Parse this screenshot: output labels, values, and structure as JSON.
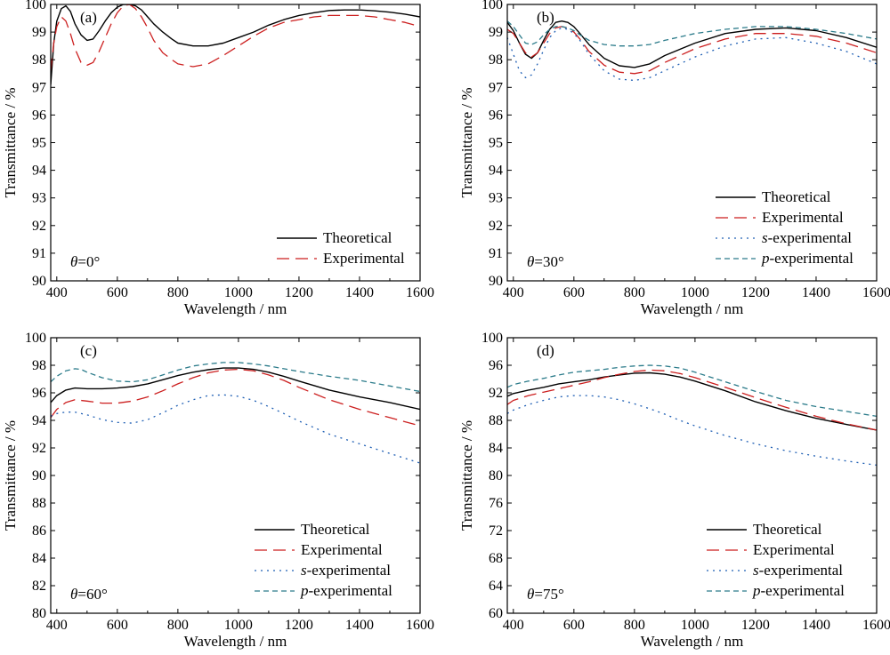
{
  "chart_data": [
    {
      "type": "line",
      "panel_label": "(a)",
      "angle_label": "=0°",
      "angle_symbol": "θ",
      "xlabel": "Wavelength / nm",
      "ylabel": "Transmittance / %",
      "xlim": [
        380,
        1600
      ],
      "ylim": [
        90,
        100
      ],
      "xticks": [
        400,
        600,
        800,
        1000,
        1200,
        1400,
        1600
      ],
      "yticks": [
        90,
        91,
        92,
        93,
        94,
        95,
        96,
        97,
        98,
        99,
        100
      ],
      "legend_position": "bottom-right",
      "series": [
        {
          "name": "Theoretical",
          "color": "#000000",
          "dash": "solid",
          "x": [
            380,
            390,
            400,
            415,
            430,
            445,
            460,
            480,
            500,
            520,
            540,
            560,
            580,
            600,
            620,
            640,
            660,
            680,
            700,
            720,
            750,
            780,
            800,
            850,
            900,
            950,
            1000,
            1050,
            1100,
            1150,
            1200,
            1250,
            1300,
            1350,
            1400,
            1450,
            1500,
            1550,
            1600
          ],
          "y": [
            97.1,
            98.6,
            99.4,
            99.85,
            99.95,
            99.75,
            99.3,
            98.9,
            98.7,
            98.75,
            99.05,
            99.4,
            99.7,
            99.9,
            100.0,
            100.0,
            99.95,
            99.8,
            99.55,
            99.3,
            99.0,
            98.75,
            98.6,
            98.5,
            98.5,
            98.6,
            98.8,
            99.0,
            99.25,
            99.45,
            99.6,
            99.7,
            99.78,
            99.8,
            99.8,
            99.77,
            99.72,
            99.65,
            99.55
          ]
        },
        {
          "name": "Experimental",
          "color": "#cc1f1f",
          "dash": "long",
          "x": [
            380,
            390,
            400,
            415,
            430,
            445,
            460,
            480,
            500,
            520,
            540,
            560,
            580,
            600,
            620,
            640,
            660,
            680,
            700,
            720,
            750,
            780,
            800,
            850,
            900,
            950,
            1000,
            1050,
            1100,
            1150,
            1200,
            1250,
            1300,
            1350,
            1400,
            1450,
            1500,
            1550,
            1600
          ],
          "y": [
            97.6,
            98.6,
            99.2,
            99.55,
            99.4,
            98.95,
            98.4,
            97.9,
            97.8,
            97.9,
            98.3,
            98.8,
            99.3,
            99.7,
            99.95,
            100.0,
            99.85,
            99.55,
            99.15,
            98.7,
            98.25,
            98.0,
            97.85,
            97.75,
            97.85,
            98.15,
            98.5,
            98.85,
            99.15,
            99.35,
            99.45,
            99.55,
            99.6,
            99.6,
            99.6,
            99.55,
            99.45,
            99.35,
            99.2
          ]
        }
      ]
    },
    {
      "type": "line",
      "panel_label": "(b)",
      "angle_label": "=30°",
      "angle_symbol": "θ",
      "xlabel": "Wavelength / nm",
      "ylabel": "Transmittance / %",
      "xlim": [
        380,
        1600
      ],
      "ylim": [
        90,
        100
      ],
      "xticks": [
        400,
        600,
        800,
        1000,
        1200,
        1400,
        1600
      ],
      "yticks": [
        90,
        91,
        92,
        93,
        94,
        95,
        96,
        97,
        98,
        99,
        100
      ],
      "legend_position": "bottom-right",
      "series": [
        {
          "name": "Theoretical",
          "color": "#000000",
          "dash": "solid",
          "x": [
            380,
            400,
            420,
            440,
            460,
            480,
            500,
            520,
            540,
            560,
            580,
            600,
            620,
            650,
            700,
            750,
            800,
            850,
            900,
            1000,
            1100,
            1200,
            1300,
            1400,
            1500,
            1600
          ],
          "y": [
            99.35,
            99.05,
            98.6,
            98.2,
            98.05,
            98.25,
            98.7,
            99.1,
            99.35,
            99.4,
            99.35,
            99.2,
            98.95,
            98.55,
            98.05,
            97.78,
            97.72,
            97.85,
            98.15,
            98.6,
            98.95,
            99.1,
            99.15,
            99.05,
            98.8,
            98.45
          ]
        },
        {
          "name": "Experimental",
          "color": "#cc1f1f",
          "dash": "long",
          "x": [
            380,
            400,
            420,
            440,
            460,
            480,
            500,
            520,
            540,
            560,
            580,
            600,
            620,
            650,
            700,
            750,
            800,
            850,
            900,
            1000,
            1100,
            1200,
            1300,
            1400,
            1500,
            1600
          ],
          "y": [
            99.1,
            98.95,
            98.6,
            98.25,
            98.1,
            98.25,
            98.6,
            98.95,
            99.15,
            99.2,
            99.15,
            99.0,
            98.75,
            98.3,
            97.8,
            97.55,
            97.5,
            97.6,
            97.9,
            98.4,
            98.75,
            98.95,
            98.95,
            98.85,
            98.6,
            98.25
          ]
        },
        {
          "name": "s-experimental",
          "color": "#1f5fb4",
          "dash": "dot",
          "x": [
            380,
            400,
            420,
            440,
            460,
            480,
            500,
            520,
            540,
            560,
            580,
            600,
            620,
            650,
            700,
            750,
            800,
            850,
            900,
            1000,
            1100,
            1200,
            1300,
            1400,
            1500,
            1600
          ],
          "y": [
            98.8,
            98.2,
            97.6,
            97.35,
            97.45,
            97.85,
            98.35,
            98.8,
            99.05,
            99.15,
            99.1,
            98.95,
            98.7,
            98.2,
            97.6,
            97.3,
            97.25,
            97.35,
            97.6,
            98.1,
            98.5,
            98.75,
            98.8,
            98.6,
            98.3,
            97.85
          ]
        },
        {
          "name": "p-experimental",
          "color": "#2b7b8a",
          "dash": "short",
          "x": [
            380,
            400,
            420,
            440,
            460,
            480,
            500,
            520,
            540,
            560,
            580,
            600,
            620,
            650,
            700,
            750,
            800,
            850,
            900,
            1000,
            1100,
            1200,
            1300,
            1400,
            1500,
            1600
          ],
          "y": [
            99.4,
            99.2,
            98.9,
            98.6,
            98.55,
            98.65,
            98.9,
            99.1,
            99.2,
            99.2,
            99.15,
            99.05,
            98.9,
            98.7,
            98.55,
            98.5,
            98.5,
            98.55,
            98.7,
            98.95,
            99.1,
            99.2,
            99.2,
            99.1,
            98.95,
            98.75
          ]
        }
      ]
    },
    {
      "type": "line",
      "panel_label": "(c)",
      "angle_label": "=60°",
      "angle_symbol": "θ",
      "xlabel": "Wavelength / nm",
      "ylabel": "Transmittance / %",
      "xlim": [
        380,
        1600
      ],
      "ylim": [
        80,
        100
      ],
      "xticks": [
        400,
        600,
        800,
        1000,
        1200,
        1400,
        1600
      ],
      "yticks": [
        80,
        82,
        84,
        86,
        88,
        90,
        92,
        94,
        96,
        98,
        100
      ],
      "legend_position": "bottom-right",
      "series": [
        {
          "name": "Theoretical",
          "color": "#000000",
          "dash": "solid",
          "x": [
            380,
            400,
            430,
            460,
            500,
            550,
            600,
            650,
            700,
            750,
            800,
            850,
            900,
            950,
            1000,
            1050,
            1100,
            1150,
            1200,
            1300,
            1400,
            1500,
            1600
          ],
          "y": [
            95.3,
            95.8,
            96.2,
            96.35,
            96.3,
            96.3,
            96.35,
            96.45,
            96.65,
            96.95,
            97.25,
            97.5,
            97.68,
            97.8,
            97.8,
            97.7,
            97.5,
            97.2,
            96.85,
            96.2,
            95.7,
            95.3,
            94.8
          ]
        },
        {
          "name": "Experimental",
          "color": "#cc1f1f",
          "dash": "long",
          "x": [
            380,
            400,
            430,
            460,
            500,
            550,
            600,
            650,
            700,
            750,
            800,
            850,
            900,
            950,
            1000,
            1050,
            1100,
            1150,
            1200,
            1300,
            1400,
            1500,
            1600
          ],
          "y": [
            94.2,
            94.8,
            95.3,
            95.5,
            95.4,
            95.25,
            95.25,
            95.4,
            95.7,
            96.15,
            96.65,
            97.1,
            97.45,
            97.65,
            97.7,
            97.6,
            97.3,
            96.9,
            96.4,
            95.5,
            94.8,
            94.2,
            93.6
          ]
        },
        {
          "name": "s-experimental",
          "color": "#1f5fb4",
          "dash": "dot",
          "x": [
            380,
            400,
            430,
            460,
            500,
            550,
            600,
            650,
            700,
            750,
            800,
            850,
            900,
            950,
            1000,
            1050,
            1100,
            1150,
            1200,
            1300,
            1400,
            1500,
            1600
          ],
          "y": [
            94.3,
            94.5,
            94.6,
            94.6,
            94.4,
            94.05,
            93.85,
            93.8,
            94.05,
            94.55,
            95.1,
            95.5,
            95.8,
            95.85,
            95.75,
            95.45,
            95.0,
            94.5,
            93.95,
            93.0,
            92.3,
            91.6,
            90.9
          ]
        },
        {
          "name": "p-experimental",
          "color": "#2b7b8a",
          "dash": "short",
          "x": [
            380,
            400,
            430,
            460,
            480,
            500,
            550,
            600,
            650,
            700,
            750,
            800,
            850,
            900,
            950,
            1000,
            1050,
            1100,
            1150,
            1200,
            1300,
            1400,
            1500,
            1600
          ],
          "y": [
            96.8,
            97.2,
            97.6,
            97.75,
            97.7,
            97.5,
            97.1,
            96.85,
            96.8,
            96.95,
            97.3,
            97.65,
            97.95,
            98.1,
            98.2,
            98.2,
            98.1,
            97.95,
            97.75,
            97.55,
            97.2,
            96.9,
            96.5,
            96.1
          ]
        }
      ]
    },
    {
      "type": "line",
      "panel_label": "(d)",
      "angle_label": "=75°",
      "angle_symbol": "θ",
      "xlabel": "Wavelength / nm",
      "ylabel": "Transmittance / %",
      "xlim": [
        380,
        1600
      ],
      "ylim": [
        60,
        100
      ],
      "xticks": [
        400,
        600,
        800,
        1000,
        1200,
        1400,
        1600
      ],
      "yticks": [
        60,
        64,
        68,
        72,
        76,
        80,
        84,
        88,
        92,
        96,
        100
      ],
      "legend_position": "bottom-right",
      "series": [
        {
          "name": "Theoretical",
          "color": "#000000",
          "dash": "solid",
          "x": [
            380,
            400,
            450,
            500,
            550,
            600,
            650,
            700,
            750,
            800,
            850,
            900,
            950,
            1000,
            1100,
            1200,
            1300,
            1400,
            1500,
            1600
          ],
          "y": [
            91.5,
            91.9,
            92.4,
            92.8,
            93.3,
            93.6,
            93.9,
            94.3,
            94.6,
            94.85,
            94.9,
            94.7,
            94.3,
            93.7,
            92.3,
            90.7,
            89.4,
            88.3,
            87.4,
            86.6
          ]
        },
        {
          "name": "Experimental",
          "color": "#cc1f1f",
          "dash": "long",
          "x": [
            380,
            400,
            450,
            500,
            550,
            600,
            650,
            700,
            750,
            800,
            850,
            900,
            950,
            1000,
            1100,
            1200,
            1300,
            1400,
            1500,
            1600
          ],
          "y": [
            90.3,
            90.9,
            91.6,
            92.1,
            92.6,
            93.1,
            93.6,
            94.2,
            94.7,
            95.1,
            95.3,
            95.2,
            94.8,
            94.2,
            92.8,
            91.3,
            89.9,
            88.6,
            87.5,
            86.6
          ]
        },
        {
          "name": "s-experimental",
          "color": "#1f5fb4",
          "dash": "dot",
          "x": [
            380,
            400,
            450,
            500,
            550,
            600,
            650,
            700,
            750,
            800,
            850,
            900,
            950,
            1000,
            1100,
            1200,
            1300,
            1400,
            1500,
            1600
          ],
          "y": [
            89.0,
            89.5,
            90.3,
            90.9,
            91.4,
            91.6,
            91.6,
            91.4,
            91.0,
            90.4,
            89.7,
            88.9,
            88.0,
            87.2,
            85.8,
            84.6,
            83.6,
            82.8,
            82.1,
            81.5
          ]
        },
        {
          "name": "p-experimental",
          "color": "#2b7b8a",
          "dash": "short",
          "x": [
            380,
            400,
            450,
            500,
            550,
            600,
            650,
            700,
            750,
            800,
            850,
            900,
            950,
            1000,
            1100,
            1200,
            1300,
            1400,
            1500,
            1600
          ],
          "y": [
            92.8,
            93.2,
            93.7,
            94.1,
            94.6,
            95.0,
            95.2,
            95.4,
            95.7,
            95.9,
            96.0,
            95.9,
            95.6,
            95.0,
            93.6,
            92.2,
            90.9,
            90.0,
            89.3,
            88.6
          ]
        }
      ]
    }
  ]
}
